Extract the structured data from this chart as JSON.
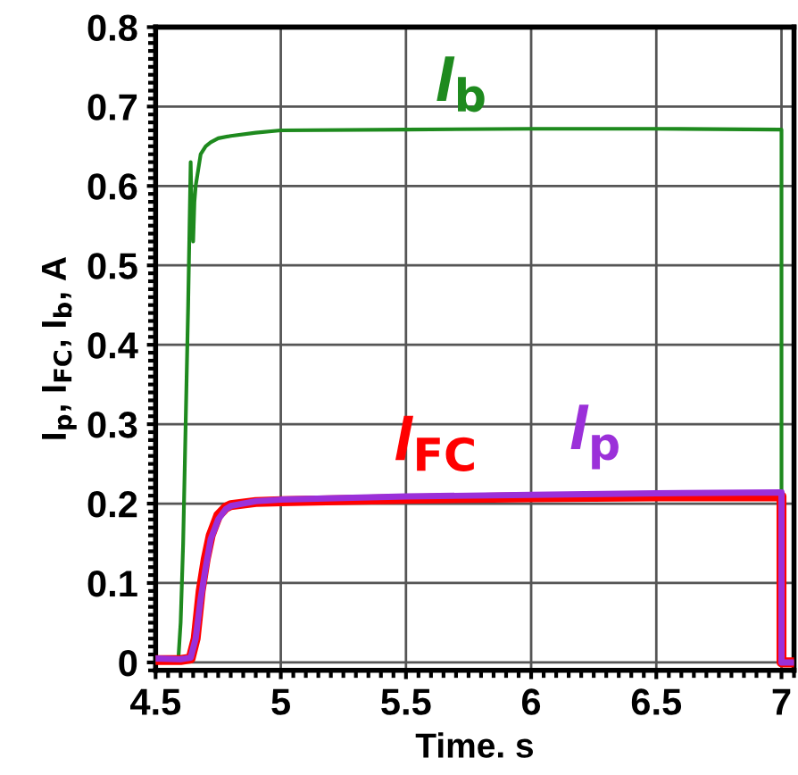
{
  "chart_data": {
    "type": "line",
    "xlabel": "Time. s",
    "ylabel": "I$_{p}$, I$_{FC}$, I$_{b}$, A",
    "xlim": [
      4.5,
      7.05
    ],
    "xticks": [
      4.5,
      5,
      5.5,
      6,
      6.5,
      7
    ],
    "ylim": [
      -0.01,
      0.8
    ],
    "yticks": [
      0,
      0.1,
      0.2,
      0.3,
      0.4,
      0.5,
      0.6,
      0.7,
      0.8
    ],
    "grid": true,
    "marker": "none",
    "line_style": "solid",
    "series": [
      {
        "name": "I$_{b}$",
        "color": "#1e8a1e",
        "x": [
          4.5,
          4.55,
          4.59,
          4.6,
          4.61,
          4.62,
          4.63,
          4.64,
          4.645,
          4.65,
          4.655,
          4.66,
          4.67,
          4.68,
          4.7,
          4.72,
          4.75,
          4.8,
          4.9,
          5.0,
          5.5,
          6.0,
          6.5,
          6.99,
          7.0,
          7.0,
          7.05
        ],
        "values": [
          0.0,
          0.0,
          0.0,
          0.05,
          0.15,
          0.3,
          0.45,
          0.63,
          0.55,
          0.53,
          0.58,
          0.6,
          0.62,
          0.64,
          0.65,
          0.655,
          0.66,
          0.663,
          0.667,
          0.67,
          0.671,
          0.672,
          0.672,
          0.671,
          0.671,
          0.0,
          0.0
        ]
      },
      {
        "name": "I$_{FC}$",
        "color": "#ff0000",
        "x": [
          4.5,
          4.6,
          4.64,
          4.66,
          4.68,
          4.7,
          4.72,
          4.75,
          4.78,
          4.8,
          4.9,
          5.0,
          5.5,
          6.0,
          6.5,
          7.0,
          7.0,
          7.05
        ],
        "values": [
          0.003,
          0.003,
          0.005,
          0.03,
          0.09,
          0.13,
          0.16,
          0.185,
          0.195,
          0.198,
          0.202,
          0.203,
          0.206,
          0.208,
          0.209,
          0.209,
          0.0,
          0.0
        ]
      },
      {
        "name": "I$_{p}$",
        "color": "#9b30d9",
        "x": [
          4.5,
          4.6,
          4.64,
          4.66,
          4.68,
          4.7,
          4.72,
          4.75,
          4.78,
          4.8,
          4.9,
          5.0,
          5.5,
          6.0,
          6.5,
          7.0,
          7.0,
          7.05
        ],
        "values": [
          0.005,
          0.004,
          0.006,
          0.03,
          0.08,
          0.12,
          0.155,
          0.18,
          0.193,
          0.197,
          0.203,
          0.205,
          0.209,
          0.211,
          0.213,
          0.214,
          0.0,
          0.0
        ]
      }
    ]
  }
}
